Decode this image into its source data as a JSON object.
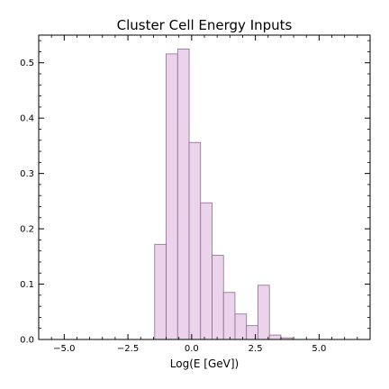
{
  "chart_data": {
    "type": "bar",
    "title": "Cluster Cell Energy Inputs",
    "xlabel": "Log(E [GeV])",
    "ylabel": "",
    "xlim": [
      -6.0,
      7.0
    ],
    "ylim": [
      0,
      0.55
    ],
    "grid": false,
    "legend": "none",
    "x_ticks": [
      -5.0,
      -2.5,
      0.0,
      2.5,
      5.0
    ],
    "x_tick_labels": [
      "−5.0",
      "−2.5",
      "0.0",
      "2.5",
      "5.0"
    ],
    "y_ticks": [
      0.0,
      0.1,
      0.2,
      0.3,
      0.4,
      0.5
    ],
    "y_tick_labels": [
      "0.0",
      "0.1",
      "0.2",
      "0.3",
      "0.4",
      "0.5"
    ],
    "bin_edges": [
      -1.45,
      -1.0,
      -0.55,
      -0.1,
      0.35,
      0.8,
      1.25,
      1.7,
      2.15,
      2.6,
      3.05,
      3.5,
      3.95
    ],
    "values": [
      0.172,
      0.516,
      0.525,
      0.356,
      0.247,
      0.152,
      0.085,
      0.046,
      0.025,
      0.098,
      0.008,
      0.003
    ],
    "colors": {
      "bar_fill": "#ecd3ec",
      "bar_stroke": "#8c6a8c",
      "axis": "#000000"
    }
  }
}
